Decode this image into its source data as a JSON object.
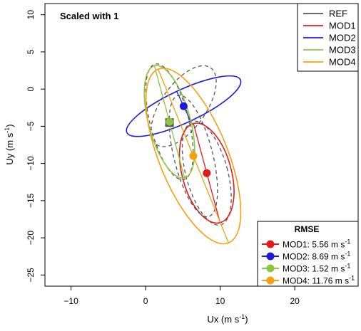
{
  "chart_data": {
    "type": "scatter",
    "title": "Scaled with 1",
    "xlabel": "Ux (m s",
    "xlabel_sup": "-1",
    "xlabel_end": ")",
    "ylabel": "Uy (m s",
    "ylabel_sup": "-1",
    "ylabel_end": ")",
    "xlim": [
      -13.5,
      28.5
    ],
    "ylim": [
      -26.5,
      11.5
    ],
    "xticks": [
      -10,
      0,
      10,
      20
    ],
    "yticks": [
      10,
      5,
      0,
      -5,
      -10,
      -15,
      -20,
      -25
    ],
    "grid": false,
    "legend_position": "top-right",
    "legend": [
      {
        "label": "REF",
        "color": "#555555",
        "dashed": false
      },
      {
        "label": "MOD1",
        "color": "#e31a1c",
        "dashed": false
      },
      {
        "label": "MOD2",
        "color": "#1a1adb",
        "dashed": false
      },
      {
        "label": "MOD3",
        "color": "#8cc63f",
        "dashed": false
      },
      {
        "label": "MOD4",
        "color": "#f5a00f",
        "dashed": false
      }
    ],
    "rmse_title": "RMSE",
    "rmse_position": "bottom-right",
    "rmse": [
      {
        "name": "MOD1",
        "value": "5.56",
        "color": "#e31a1c"
      },
      {
        "name": "MOD2",
        "value": "8.69",
        "color": "#1a1adb"
      },
      {
        "name": "MOD3",
        "value": "1.52",
        "color": "#8cc63f"
      },
      {
        "name": "MOD4",
        "value": "11.76",
        "color": "#f5a00f"
      }
    ],
    "unit_text": "m s",
    "unit_sup": "-1",
    "ref_point": {
      "name": "REF",
      "x": 3.2,
      "y": -4.5,
      "color": "#555555"
    },
    "series": [
      {
        "name": "MOD1",
        "color": "#e31a1c",
        "mean": [
          8.2,
          -11.3
        ],
        "ref_mean": [
          3.2,
          -4.5
        ],
        "ellipse": {
          "cx": 8.2,
          "cy": -11.3,
          "rx": 3.3,
          "ry": 6.9,
          "angle": -15
        },
        "ref_ellipse": {
          "cx": 8.2,
          "cy": -11.3,
          "rx": 2.8,
          "ry": 7.2,
          "angle": -15
        }
      },
      {
        "name": "MOD2",
        "color": "#1a1adb",
        "mean": [
          5.1,
          -2.3
        ],
        "ref_mean": [
          3.2,
          -4.5
        ],
        "ellipse": {
          "cx": 5.1,
          "cy": -2.3,
          "rx": 8.4,
          "ry": 2.2,
          "angle": -25
        },
        "ref_ellipse": {
          "cx": 5.1,
          "cy": -2.3,
          "rx": 6.3,
          "ry": 3.0,
          "angle": -55
        }
      },
      {
        "name": "MOD3",
        "color": "#8cc63f",
        "mean": [
          3.2,
          -4.4
        ],
        "ref_mean": [
          3.2,
          -4.5
        ],
        "ellipse": {
          "cx": 3.2,
          "cy": -4.4,
          "rx": 2.8,
          "ry": 7.8,
          "angle": -15
        },
        "ref_ellipse": {
          "cx": 3.2,
          "cy": -4.4,
          "rx": 2.6,
          "ry": 8.0,
          "angle": -14
        }
      },
      {
        "name": "MOD4",
        "color": "#f5a00f",
        "mean": [
          6.4,
          -9.0
        ],
        "ref_mean": [
          3.2,
          -4.5
        ],
        "ellipse": {
          "cx": 6.4,
          "cy": -9.0,
          "rx": 4.6,
          "ry": 12.6,
          "angle": -22
        },
        "ref_ellipse": {
          "cx": 6.4,
          "cy": -9.0,
          "rx": 2.6,
          "ry": 8.4,
          "angle": -14
        }
      }
    ]
  }
}
